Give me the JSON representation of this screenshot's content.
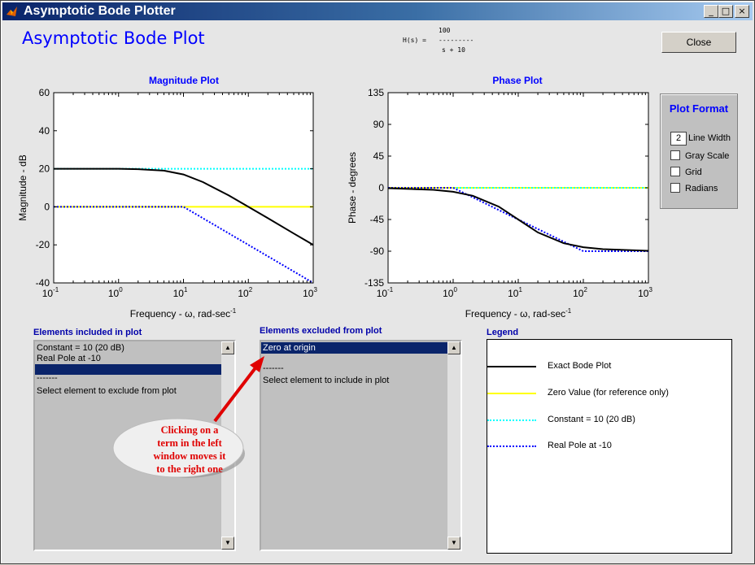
{
  "window": {
    "title": "Asymptotic Bode Plotter",
    "controls": [
      "_",
      "□",
      "×"
    ]
  },
  "heading": "Asymptotic Bode Plot",
  "transfer_function": {
    "lhs": "H(s) =",
    "numerator": "100",
    "bar": "---------",
    "denominator": "s + 10"
  },
  "close_label": "Close",
  "magnitude_plot": {
    "title": "Magnitude Plot",
    "ylabel": "Magnitude - dB",
    "xlabel": "Frequency - ω, rad-sec",
    "xlabel_sup": "-1",
    "yticks": [
      "60",
      "40",
      "20",
      "0",
      "-20",
      "-40"
    ],
    "xticks": [
      {
        "base": "10",
        "exp": "-1"
      },
      {
        "base": "10",
        "exp": "0"
      },
      {
        "base": "10",
        "exp": "1"
      },
      {
        "base": "10",
        "exp": "2"
      },
      {
        "base": "10",
        "exp": "3"
      }
    ]
  },
  "phase_plot": {
    "title": "Phase Plot",
    "ylabel": "Phase - degrees",
    "xlabel": "Frequency - ω, rad-sec",
    "xlabel_sup": "-1",
    "yticks": [
      "135",
      "90",
      "45",
      "0",
      "-45",
      "-90",
      "-135"
    ],
    "xticks": [
      {
        "base": "10",
        "exp": "-1"
      },
      {
        "base": "10",
        "exp": "0"
      },
      {
        "base": "10",
        "exp": "1"
      },
      {
        "base": "10",
        "exp": "2"
      },
      {
        "base": "10",
        "exp": "3"
      }
    ]
  },
  "chart_data": [
    {
      "type": "line",
      "title": "Magnitude Plot",
      "xlabel": "Frequency - ω, rad-sec-1",
      "ylabel": "Magnitude - dB",
      "xscale": "log",
      "xlim": [
        0.1,
        1000
      ],
      "ylim": [
        -40,
        60
      ],
      "series": [
        {
          "name": "Exact Bode Plot",
          "color": "#000000",
          "style": "solid",
          "x": [
            0.1,
            1,
            2,
            5,
            10,
            20,
            50,
            100,
            200,
            500,
            1000
          ],
          "y": [
            20,
            20,
            19.8,
            19,
            17,
            13,
            6.0,
            0,
            -6,
            -14,
            -20
          ]
        },
        {
          "name": "Zero Value (for reference only)",
          "color": "#ffff00",
          "style": "solid",
          "x": [
            0.1,
            1000
          ],
          "y": [
            0,
            0
          ]
        },
        {
          "name": "Constant = 10 (20 dB)",
          "color": "#00ffff",
          "style": "dotted",
          "x": [
            0.1,
            1000
          ],
          "y": [
            20,
            20
          ]
        },
        {
          "name": "Real Pole at -10",
          "color": "#0000ff",
          "style": "dotted",
          "x": [
            0.1,
            10,
            100,
            1000
          ],
          "y": [
            0,
            0,
            -20,
            -40
          ]
        }
      ]
    },
    {
      "type": "line",
      "title": "Phase Plot",
      "xlabel": "Frequency - ω, rad-sec-1",
      "ylabel": "Phase - degrees",
      "xscale": "log",
      "xlim": [
        0.1,
        1000
      ],
      "ylim": [
        -135,
        135
      ],
      "series": [
        {
          "name": "Exact Bode Plot",
          "color": "#000000",
          "style": "solid",
          "x": [
            0.1,
            0.5,
            1,
            2,
            5,
            10,
            20,
            50,
            100,
            200,
            1000
          ],
          "y": [
            -0.6,
            -2.9,
            -5.7,
            -11.3,
            -26.6,
            -45,
            -63.4,
            -78.7,
            -84.3,
            -87.1,
            -89.4
          ]
        },
        {
          "name": "Zero Value (for reference only)",
          "color": "#ffff00",
          "style": "solid",
          "x": [
            0.1,
            1000
          ],
          "y": [
            0,
            0
          ]
        },
        {
          "name": "Constant = 10 (20 dB)",
          "color": "#00ffff",
          "style": "dotted",
          "x": [
            0.1,
            1000
          ],
          "y": [
            0,
            0
          ]
        },
        {
          "name": "Real Pole at -10",
          "color": "#0000ff",
          "style": "dotted",
          "x": [
            0.1,
            1,
            100,
            1000
          ],
          "y": [
            0,
            0,
            -90,
            -90
          ]
        }
      ]
    }
  ],
  "plot_format": {
    "title": "Plot Format",
    "line_width_value": "2",
    "line_width_label": "Line Width",
    "options": [
      "Gray Scale",
      "Grid",
      "Radians"
    ]
  },
  "included": {
    "label": "Elements included in plot",
    "items": [
      "Constant = 10 (20 dB)",
      "Real Pole at -10",
      "",
      "-------",
      "Select element to exclude from plot"
    ]
  },
  "excluded": {
    "label": "Elements excluded from plot",
    "items": [
      "Zero at origin",
      "",
      "-------",
      "Select element to include in plot"
    ]
  },
  "legend": {
    "label": "Legend",
    "entries": [
      {
        "text": "Exact Bode Plot",
        "color": "#000000",
        "style": "solid"
      },
      {
        "text": "Zero Value (for reference only)",
        "color": "#ffff00",
        "style": "solid"
      },
      {
        "text": "Constant = 10 (20 dB)",
        "color": "#00ffff",
        "style": "dotted"
      },
      {
        "text": "Real Pole at -10",
        "color": "#0000ff",
        "style": "dotted"
      }
    ]
  },
  "callout": {
    "lines": [
      "Clicking on a",
      "term in the left",
      "window moves it",
      "to the right one"
    ],
    "color": "#e00000"
  }
}
